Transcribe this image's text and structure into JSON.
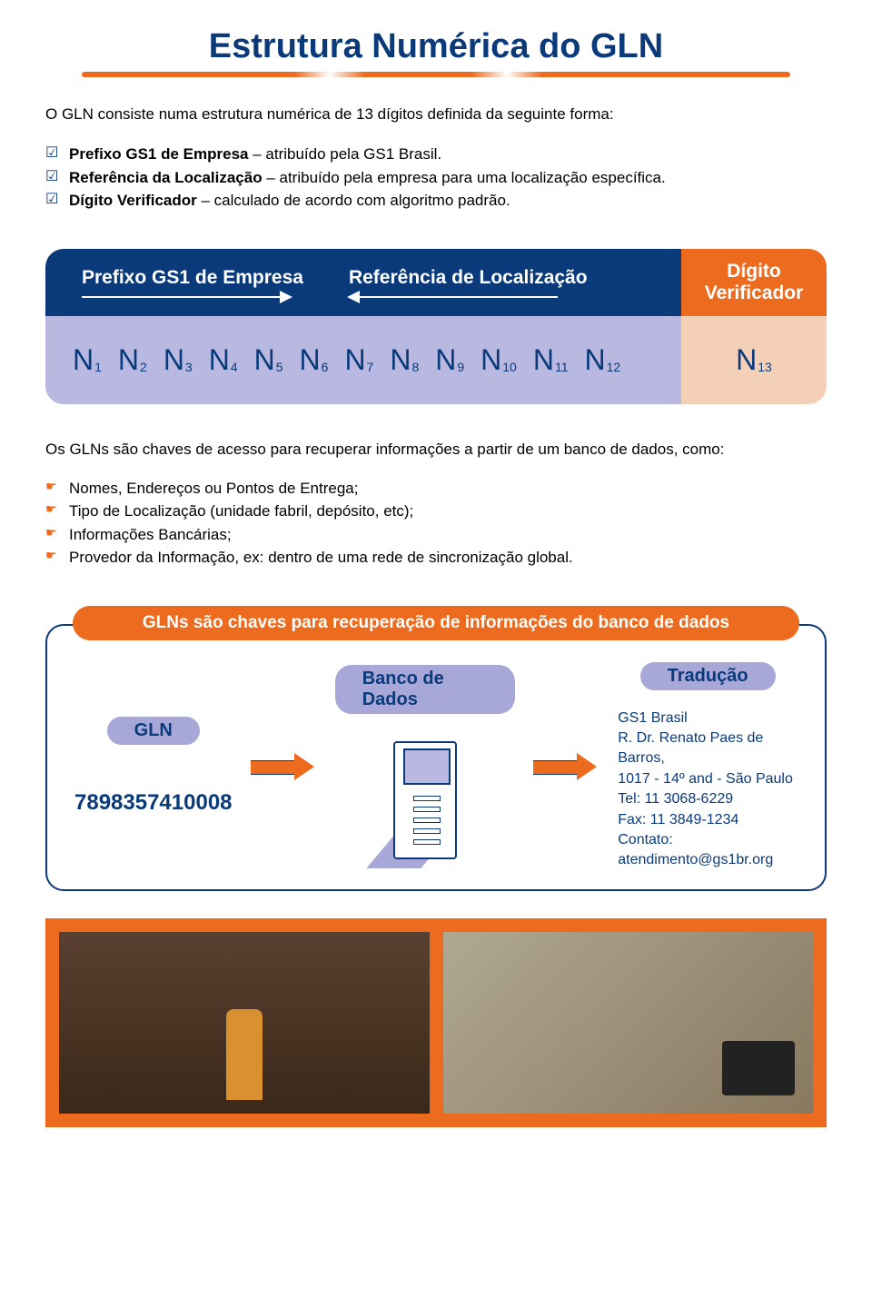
{
  "colors": {
    "darkBlue": "#0a3a7a",
    "orange": "#ed6b1f",
    "lightPurple": "#b8b8e0",
    "lightPeach": "#f5d0b8",
    "pillPurple": "#a8a8d8",
    "accentBlue": "#1050a0"
  },
  "title": "Estrutura Numérica do GLN",
  "intro": "O GLN consiste numa estrutura numérica de 13 dígitos definida da seguinte forma:",
  "checklist": [
    {
      "bold": "Prefixo GS1 de Empresa",
      "rest": " – atribuído pela GS1 Brasil."
    },
    {
      "bold": "Referência da Localização",
      "rest": " – atribuído pela empresa para uma localização específica."
    },
    {
      "bold": "Dígito Verificador",
      "rest": " – calculado de acordo com algoritmo padrão."
    }
  ],
  "structure": {
    "header": {
      "prefix": "Prefixo GS1 de Empresa",
      "reference": "Referência de Localização",
      "digit1": "Dígito",
      "digit2": "Verificador"
    },
    "digits": [
      "1",
      "2",
      "3",
      "4",
      "5",
      "6",
      "7",
      "8",
      "9",
      "10",
      "11",
      "12"
    ],
    "checkDigit": "13",
    "letter": "N"
  },
  "para2": "Os GLNs são chaves de acesso para recuperar informações a partir de um banco de dados,  como:",
  "pointerlist": [
    "Nomes, Endereços ou Pontos de Entrega;",
    "Tipo de Localização (unidade fabril, depósito, etc);",
    "Informações Bancárias;",
    "Provedor da Informação, ex: dentro de uma rede de sincronização global."
  ],
  "banner": "GLNs são chaves para recuperação de informações do banco de dados",
  "db": {
    "glnLabel": "GLN",
    "glnNumber": "7898357410008",
    "bancoLabel": "Banco de Dados",
    "traducaoLabel": "Tradução",
    "contact": {
      "l1": "GS1 Brasil",
      "l2": "R. Dr. Renato Paes de Barros,",
      "l3": "1017 - 14º and - São Paulo",
      "l4": "Tel: 11 3068-6229",
      "l5": "Fax: 11 3849-1234",
      "l6": "Contato:",
      "l7": "atendimento@gs1br.org"
    }
  }
}
